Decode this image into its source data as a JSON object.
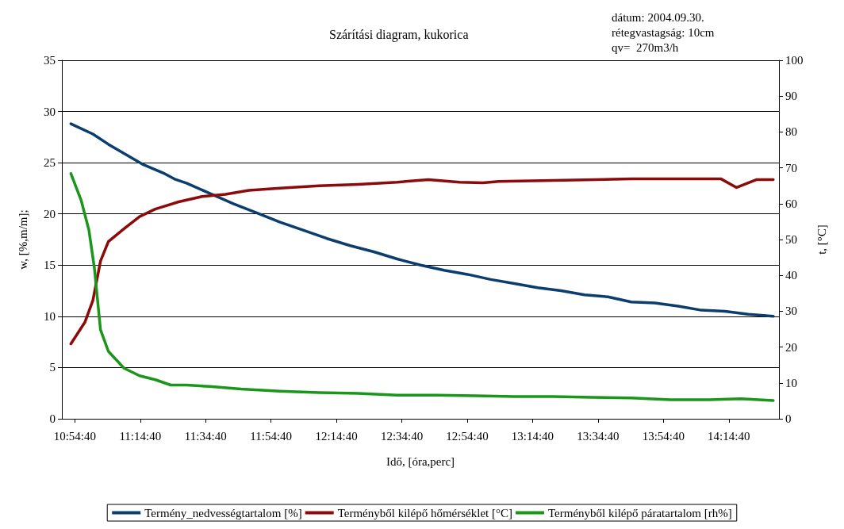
{
  "chart_data": {
    "type": "line",
    "title": "Szárítási diagram, kukorica",
    "xlabel": "Idő, [óra,perc]",
    "ylabel": "w, [%,m/m];",
    "y2label": "t, [°C]",
    "annotations": [
      "dátum: 2004.09.30.",
      "rétegvastagság: 10cm",
      "qv=  270m3/h"
    ],
    "xlim": [
      10.845,
      14.5
    ],
    "xticks": [
      {
        "value": 10.911111,
        "label": "10:54:40"
      },
      {
        "value": 11.244444,
        "label": "11:14:40"
      },
      {
        "value": 11.577778,
        "label": "11:34:40"
      },
      {
        "value": 11.911111,
        "label": "11:54:40"
      },
      {
        "value": 12.244444,
        "label": "12:14:40"
      },
      {
        "value": 12.577778,
        "label": "12:34:40"
      },
      {
        "value": 12.911111,
        "label": "12:54:40"
      },
      {
        "value": 13.244444,
        "label": "13:14:40"
      },
      {
        "value": 13.577778,
        "label": "13:34:40"
      },
      {
        "value": 13.911111,
        "label": "13:54:40"
      },
      {
        "value": 14.244444,
        "label": "14:14:40"
      }
    ],
    "ylim": [
      0,
      35
    ],
    "yticks": [
      0,
      5,
      10,
      15,
      20,
      25,
      30,
      35
    ],
    "y2lim": [
      0,
      100
    ],
    "y2ticks": [
      0,
      10,
      20,
      30,
      40,
      50,
      60,
      70,
      80,
      90,
      100
    ],
    "grid": "y",
    "legend": "bottom",
    "marker": "none",
    "line_style": "solid",
    "series": [
      {
        "name": "Termény_nedvességtartalom [%]",
        "color": "#0b3d6e",
        "x": [
          10.891,
          11.003,
          11.082,
          11.162,
          11.261,
          11.361,
          11.42,
          11.48,
          11.599,
          11.719,
          11.838,
          11.957,
          12.077,
          12.196,
          12.315,
          12.435,
          12.554,
          12.673,
          12.793,
          12.912,
          13.031,
          13.151,
          13.27,
          13.389,
          13.509,
          13.628,
          13.747,
          13.867,
          13.986,
          14.105,
          14.225,
          14.344,
          14.471
        ],
        "values": [
          28.8,
          27.8,
          26.8,
          25.9,
          24.8,
          24.0,
          23.4,
          23.0,
          22.0,
          21.0,
          20.1,
          19.2,
          18.4,
          17.6,
          16.9,
          16.3,
          15.6,
          15.0,
          14.5,
          14.1,
          13.6,
          13.2,
          12.8,
          12.5,
          12.1,
          11.9,
          11.4,
          11.3,
          11.0,
          10.6,
          10.5,
          10.2,
          10.0
        ]
      },
      {
        "name": "Terményből kilépő hőmérséklet [°C]",
        "color": "#8b0a0a",
        "axis": "y2",
        "x": [
          10.891,
          10.963,
          11.003,
          11.042,
          11.082,
          11.162,
          11.241,
          11.321,
          11.44,
          11.56,
          11.679,
          11.798,
          11.957,
          12.156,
          12.355,
          12.554,
          12.713,
          12.872,
          12.991,
          13.071,
          13.35,
          13.747,
          14.145,
          14.205,
          14.284,
          14.384,
          14.471
        ],
        "values": [
          20.9,
          27,
          33,
          44,
          49.4,
          53,
          56.4,
          58.5,
          60.5,
          62,
          62.6,
          63.7,
          64.3,
          65,
          65.4,
          66,
          66.7,
          66,
          65.8,
          66.2,
          66.5,
          66.9,
          66.9,
          66.9,
          64.5,
          66.7,
          66.7
        ]
      },
      {
        "name": "Terményből kilépő páratartalom [rh%]",
        "color": "#1a961a",
        "axis": "y2",
        "x": [
          10.891,
          10.943,
          10.983,
          11.011,
          11.042,
          11.082,
          11.162,
          11.241,
          11.321,
          11.4,
          11.48,
          11.599,
          11.758,
          11.957,
          12.156,
          12.355,
          12.554,
          12.753,
          12.952,
          13.151,
          13.35,
          13.548,
          13.747,
          13.946,
          14.145,
          14.304,
          14.471
        ],
        "values": [
          68.4,
          61,
          52.6,
          41.9,
          24.8,
          18.8,
          14.1,
          12,
          10.9,
          9.4,
          9.4,
          9,
          8.3,
          7.7,
          7.3,
          7.1,
          6.6,
          6.6,
          6.4,
          6.2,
          6.2,
          6,
          5.8,
          5.3,
          5.3,
          5.6,
          5.1
        ]
      }
    ]
  }
}
